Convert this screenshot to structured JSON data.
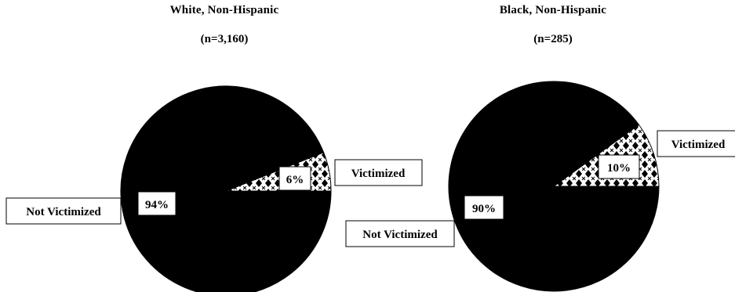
{
  "chart_data": [
    {
      "type": "pie",
      "title": "White, Non-Hispanic",
      "subtitle": "(n=3,160)",
      "slices": [
        {
          "label": "Victimized",
          "value": 6,
          "value_label": "6%",
          "fill": "pattern"
        },
        {
          "label": "Not Victimized",
          "value": 94,
          "value_label": "94%",
          "fill": "#000000"
        }
      ]
    },
    {
      "type": "pie",
      "title": "Black, Non-Hispanic",
      "subtitle": "(n=285)",
      "slices": [
        {
          "label": "Victimized",
          "value": 10,
          "value_label": "10%",
          "fill": "pattern"
        },
        {
          "label": "Not Victimized",
          "value": 90,
          "value_label": "90%",
          "fill": "#000000"
        }
      ]
    }
  ]
}
